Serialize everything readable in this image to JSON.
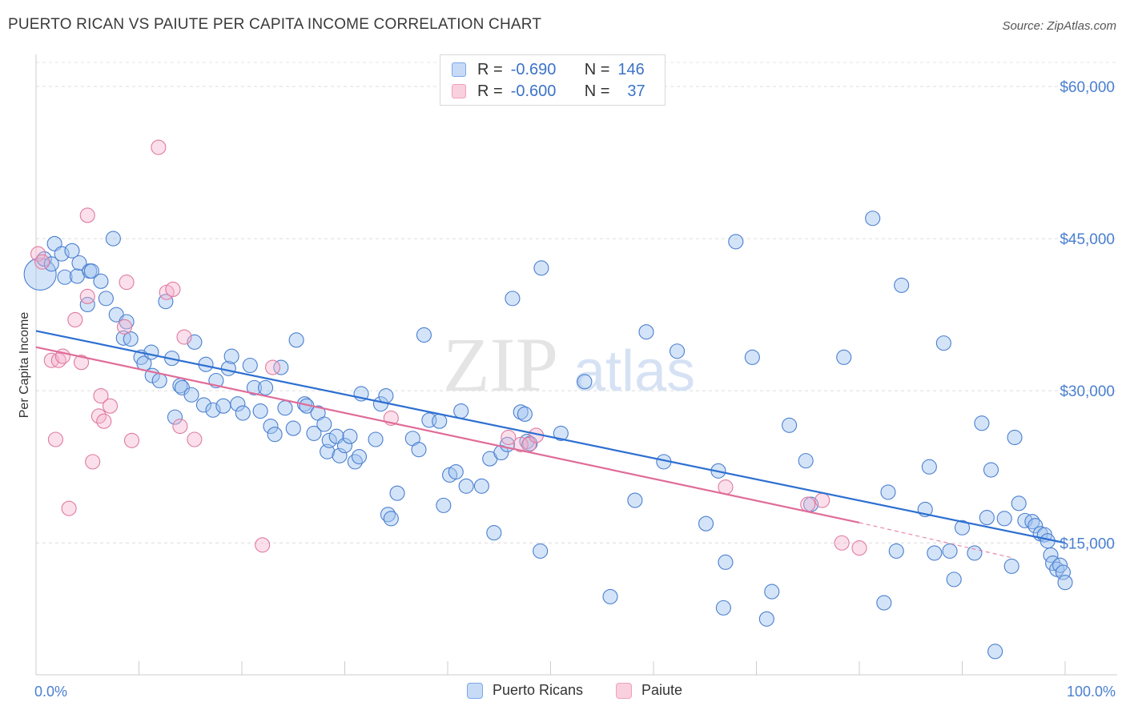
{
  "title": "PUERTO RICAN VS PAIUTE PER CAPITA INCOME CORRELATION CHART",
  "source": "Source: ZipAtlas.com",
  "watermark": {
    "zip": "ZIP",
    "atlas": "atlas"
  },
  "legend": {
    "rows": [
      {
        "r_label": "R =",
        "r_value": "-0.690",
        "n_label": "N =",
        "n_value": "146",
        "color": "#7aa8e8"
      },
      {
        "r_label": "R =",
        "r_value": "-0.600",
        "n_label": "N =",
        "n_value": "37",
        "color": "#f2a0bc"
      }
    ]
  },
  "chart_data": {
    "type": "scatter",
    "title": "PUERTO RICAN VS PAIUTE PER CAPITA INCOME CORRELATION CHART",
    "xlabel": "",
    "ylabel": "Per Capita Income",
    "xlim": [
      0,
      100
    ],
    "ylim": [
      2000,
      63000
    ],
    "x_tick_labels": [
      "0.0%",
      "100.0%"
    ],
    "y_ticks": [
      15000,
      30000,
      45000,
      60000
    ],
    "y_tick_labels": [
      "$15,000",
      "$30,000",
      "$45,000",
      "$60,000"
    ],
    "grid": true,
    "legend_position": "top-center",
    "series": [
      {
        "name": "Puerto Ricans",
        "color": "#7aa8e8",
        "stroke": "#4a7fd0",
        "trend": {
          "x": [
            0,
            100
          ],
          "y": [
            35900,
            15000
          ],
          "color": "#2d6fd1"
        },
        "points": [
          [
            0.4,
            41500
          ],
          [
            0.8,
            43000
          ],
          [
            1.5,
            42500
          ],
          [
            1.8,
            44500
          ],
          [
            2.5,
            43500
          ],
          [
            2.8,
            41200
          ],
          [
            3.5,
            43800
          ],
          [
            4.0,
            41300
          ],
          [
            4.2,
            42600
          ],
          [
            5.2,
            41800
          ],
          [
            5.4,
            41800
          ],
          [
            5.0,
            38500
          ],
          [
            6.3,
            40800
          ],
          [
            6.8,
            39100
          ],
          [
            7.5,
            45000
          ],
          [
            7.8,
            37500
          ],
          [
            8.5,
            35200
          ],
          [
            8.8,
            36800
          ],
          [
            9.2,
            35100
          ],
          [
            10.2,
            33300
          ],
          [
            10.5,
            32700
          ],
          [
            11.2,
            33800
          ],
          [
            11.3,
            31500
          ],
          [
            12.0,
            31000
          ],
          [
            12.6,
            38800
          ],
          [
            13.2,
            33200
          ],
          [
            13.5,
            27400
          ],
          [
            14.0,
            30500
          ],
          [
            14.2,
            30300
          ],
          [
            15.4,
            34800
          ],
          [
            15.1,
            29600
          ],
          [
            16.3,
            28600
          ],
          [
            16.5,
            32600
          ],
          [
            17.2,
            28100
          ],
          [
            17.5,
            31000
          ],
          [
            18.2,
            28500
          ],
          [
            18.7,
            32200
          ],
          [
            19.0,
            33400
          ],
          [
            19.6,
            28700
          ],
          [
            20.1,
            27800
          ],
          [
            20.8,
            32500
          ],
          [
            21.2,
            30300
          ],
          [
            21.8,
            28000
          ],
          [
            22.3,
            30300
          ],
          [
            22.8,
            26500
          ],
          [
            23.2,
            25700
          ],
          [
            23.8,
            32300
          ],
          [
            24.2,
            28300
          ],
          [
            25.0,
            26300
          ],
          [
            25.3,
            35000
          ],
          [
            26.1,
            28700
          ],
          [
            26.3,
            28500
          ],
          [
            27.0,
            25800
          ],
          [
            27.4,
            27800
          ],
          [
            28.0,
            26700
          ],
          [
            28.3,
            24000
          ],
          [
            28.5,
            25100
          ],
          [
            29.2,
            25500
          ],
          [
            29.5,
            23600
          ],
          [
            30.0,
            24600
          ],
          [
            30.5,
            25500
          ],
          [
            31.0,
            23000
          ],
          [
            31.4,
            23500
          ],
          [
            31.6,
            29700
          ],
          [
            33.0,
            25200
          ],
          [
            33.5,
            28700
          ],
          [
            34.0,
            29500
          ],
          [
            34.2,
            17800
          ],
          [
            34.5,
            17400
          ],
          [
            35.1,
            19900
          ],
          [
            36.6,
            25300
          ],
          [
            37.2,
            24200
          ],
          [
            37.7,
            35500
          ],
          [
            38.2,
            27100
          ],
          [
            39.2,
            27000
          ],
          [
            39.6,
            18700
          ],
          [
            40.2,
            21700
          ],
          [
            40.8,
            22000
          ],
          [
            41.3,
            28000
          ],
          [
            41.8,
            20600
          ],
          [
            43.3,
            20600
          ],
          [
            44.1,
            23300
          ],
          [
            44.5,
            16000
          ],
          [
            45.2,
            23900
          ],
          [
            45.8,
            24700
          ],
          [
            46.3,
            39100
          ],
          [
            47.1,
            27900
          ],
          [
            47.5,
            27700
          ],
          [
            47.7,
            25000
          ],
          [
            48.0,
            24800
          ],
          [
            49.0,
            14200
          ],
          [
            49.1,
            42100
          ],
          [
            51.0,
            25800
          ],
          [
            53.3,
            30900
          ],
          [
            55.8,
            9700
          ],
          [
            58.2,
            19200
          ],
          [
            59.3,
            35800
          ],
          [
            61.0,
            23000
          ],
          [
            62.3,
            33900
          ],
          [
            65.1,
            16900
          ],
          [
            66.3,
            22100
          ],
          [
            66.8,
            8600
          ],
          [
            67.0,
            13100
          ],
          [
            68.0,
            44700
          ],
          [
            69.6,
            33300
          ],
          [
            71.0,
            7500
          ],
          [
            71.5,
            10200
          ],
          [
            73.2,
            26600
          ],
          [
            74.8,
            23100
          ],
          [
            75.3,
            18800
          ],
          [
            78.5,
            33300
          ],
          [
            81.3,
            47000
          ],
          [
            82.4,
            9100
          ],
          [
            82.8,
            20000
          ],
          [
            83.6,
            14200
          ],
          [
            84.1,
            40400
          ],
          [
            86.4,
            18300
          ],
          [
            86.8,
            22500
          ],
          [
            87.3,
            14000
          ],
          [
            88.2,
            34700
          ],
          [
            88.8,
            14200
          ],
          [
            89.2,
            11400
          ],
          [
            90.0,
            16500
          ],
          [
            91.2,
            14000
          ],
          [
            91.9,
            26800
          ],
          [
            92.4,
            17500
          ],
          [
            92.8,
            22200
          ],
          [
            93.2,
            4300
          ],
          [
            94.1,
            17400
          ],
          [
            94.8,
            12700
          ],
          [
            95.1,
            25400
          ],
          [
            95.5,
            18900
          ],
          [
            96.1,
            17200
          ],
          [
            96.8,
            17100
          ],
          [
            97.1,
            16700
          ],
          [
            97.6,
            15900
          ],
          [
            98.0,
            15800
          ],
          [
            98.3,
            15200
          ],
          [
            98.6,
            13800
          ],
          [
            98.8,
            13000
          ],
          [
            99.2,
            12400
          ],
          [
            99.5,
            12800
          ],
          [
            99.8,
            12100
          ],
          [
            100.0,
            11100
          ]
        ]
      },
      {
        "name": "Paiute",
        "color": "#f2a0bc",
        "stroke": "#e07aa0",
        "trend": {
          "x": [
            0,
            80
          ],
          "y": [
            34300,
            17000
          ],
          "color": "#e06c98",
          "dashed_to": [
            95,
            13500
          ]
        },
        "points": [
          [
            0.2,
            43500
          ],
          [
            0.6,
            42700
          ],
          [
            1.5,
            33000
          ],
          [
            2.2,
            33000
          ],
          [
            2.6,
            33400
          ],
          [
            3.8,
            37000
          ],
          [
            4.4,
            32800
          ],
          [
            5.0,
            39300
          ],
          [
            5.5,
            23000
          ],
          [
            6.1,
            27500
          ],
          [
            6.3,
            29500
          ],
          [
            6.6,
            27000
          ],
          [
            7.2,
            28500
          ],
          [
            8.6,
            36300
          ],
          [
            8.8,
            40700
          ],
          [
            9.3,
            25100
          ],
          [
            11.9,
            54000
          ],
          [
            12.7,
            39700
          ],
          [
            13.3,
            40000
          ],
          [
            14.0,
            26500
          ],
          [
            14.4,
            35300
          ],
          [
            15.4,
            25200
          ],
          [
            22.0,
            14800
          ],
          [
            23.0,
            32300
          ],
          [
            34.5,
            27300
          ],
          [
            45.9,
            25400
          ],
          [
            47.1,
            24700
          ],
          [
            47.9,
            24700
          ],
          [
            48.6,
            25600
          ],
          [
            67.0,
            20500
          ],
          [
            75.0,
            18800
          ],
          [
            76.4,
            19200
          ],
          [
            78.3,
            15000
          ],
          [
            80.0,
            14500
          ],
          [
            1.9,
            25200
          ],
          [
            3.2,
            18400
          ],
          [
            5.0,
            47300
          ]
        ]
      }
    ]
  },
  "bottom_legend": [
    {
      "label": "Puerto Ricans",
      "color": "#7aa8e8"
    },
    {
      "label": "Paiute",
      "color": "#f2a0bc"
    }
  ]
}
